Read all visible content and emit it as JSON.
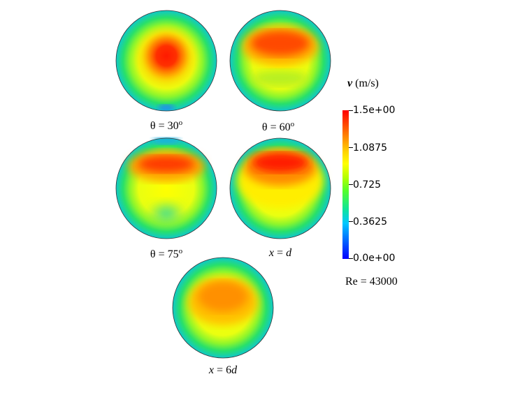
{
  "panels": [
    {
      "id": "theta-30",
      "caption": "θ = 30",
      "sup": "o"
    },
    {
      "id": "theta-60",
      "caption": "θ = 60",
      "sup": "o"
    },
    {
      "id": "theta-75",
      "caption": "θ = 75",
      "sup": "o"
    },
    {
      "id": "x-d",
      "caption_x": "x",
      "caption_eq": " = ",
      "caption_d": "d"
    },
    {
      "id": "x-6d",
      "caption_x": "x",
      "caption_eq": " = 6",
      "caption_d": "d"
    }
  ],
  "legend": {
    "var": "v",
    "unit": " (m/s)",
    "ticks": [
      "1.5e+00",
      "1.0875",
      "0.725",
      "0.3625",
      "0.0e+00"
    ],
    "colors": [
      "#ff0000",
      "#ffff00",
      "#55ff2a",
      "#00c8ff",
      "#0000ff"
    ]
  },
  "note": "Re = 43000"
}
